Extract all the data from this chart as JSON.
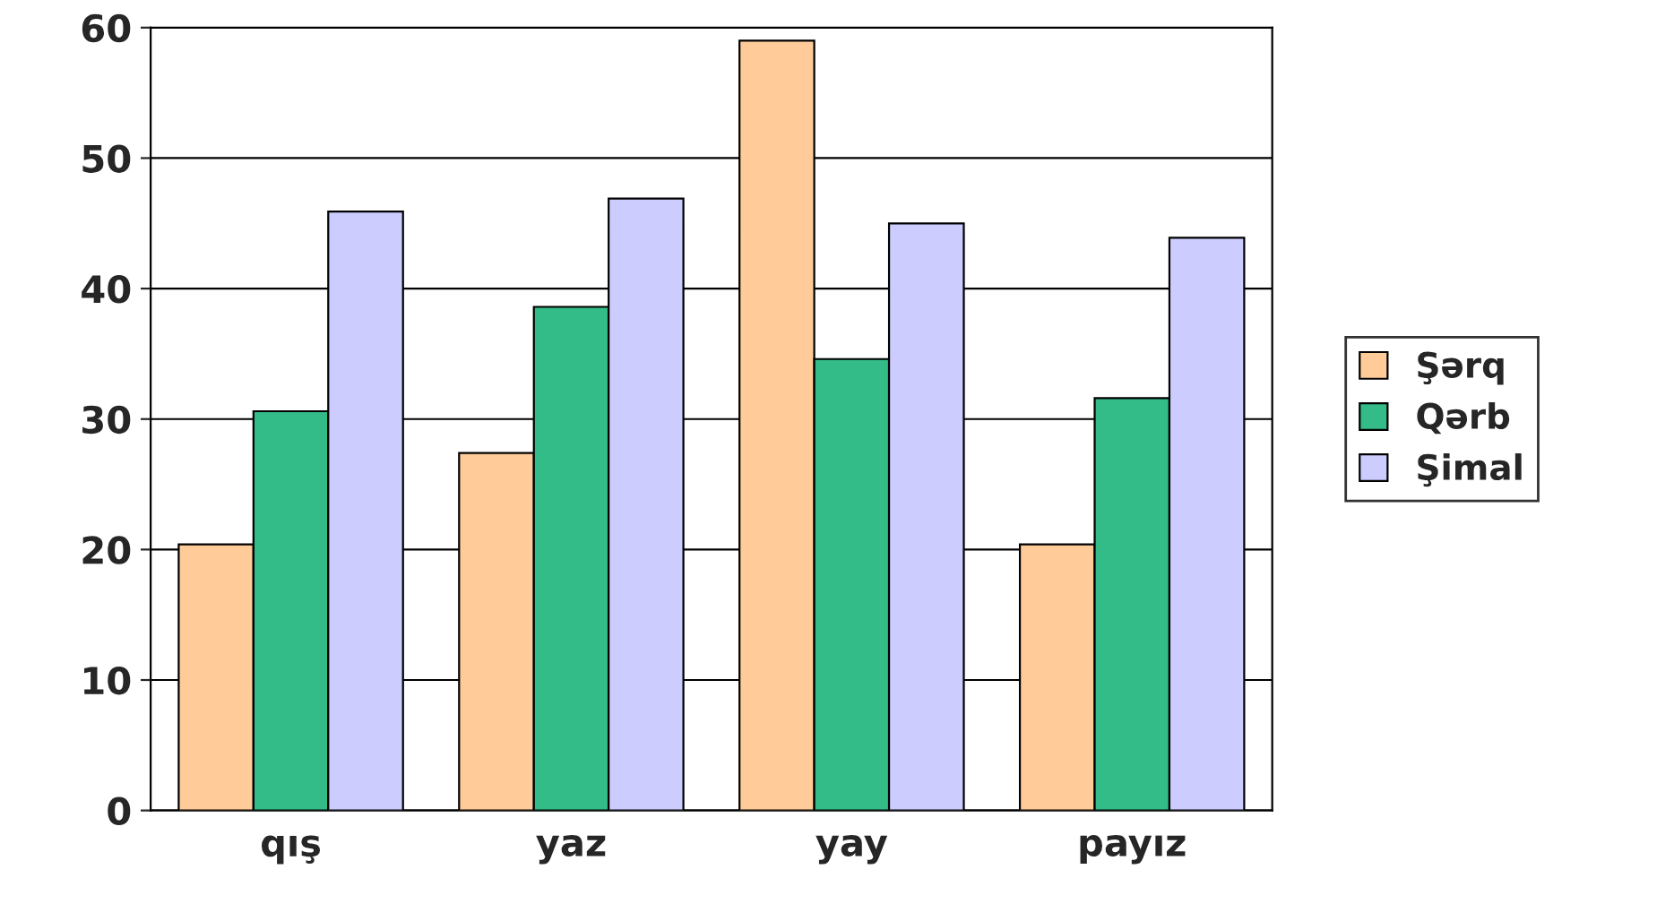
{
  "chart_data": {
    "type": "bar",
    "categories": [
      "qış",
      "yaz",
      "yay",
      "payız"
    ],
    "series": [
      {
        "name": "Şərq",
        "color": "#ffcc99",
        "values": [
          20.4,
          27.4,
          59,
          20.4
        ]
      },
      {
        "name": "Qərb",
        "color": "#33bb88",
        "values": [
          30.6,
          38.6,
          34.6,
          31.6
        ]
      },
      {
        "name": "Şimal",
        "color": "#ccccff",
        "values": [
          45.9,
          46.9,
          45,
          43.9
        ]
      }
    ],
    "ylim": [
      0,
      60
    ],
    "yticks": [
      0,
      10,
      20,
      30,
      40,
      50,
      60
    ],
    "grid": "y",
    "legend": "right"
  }
}
